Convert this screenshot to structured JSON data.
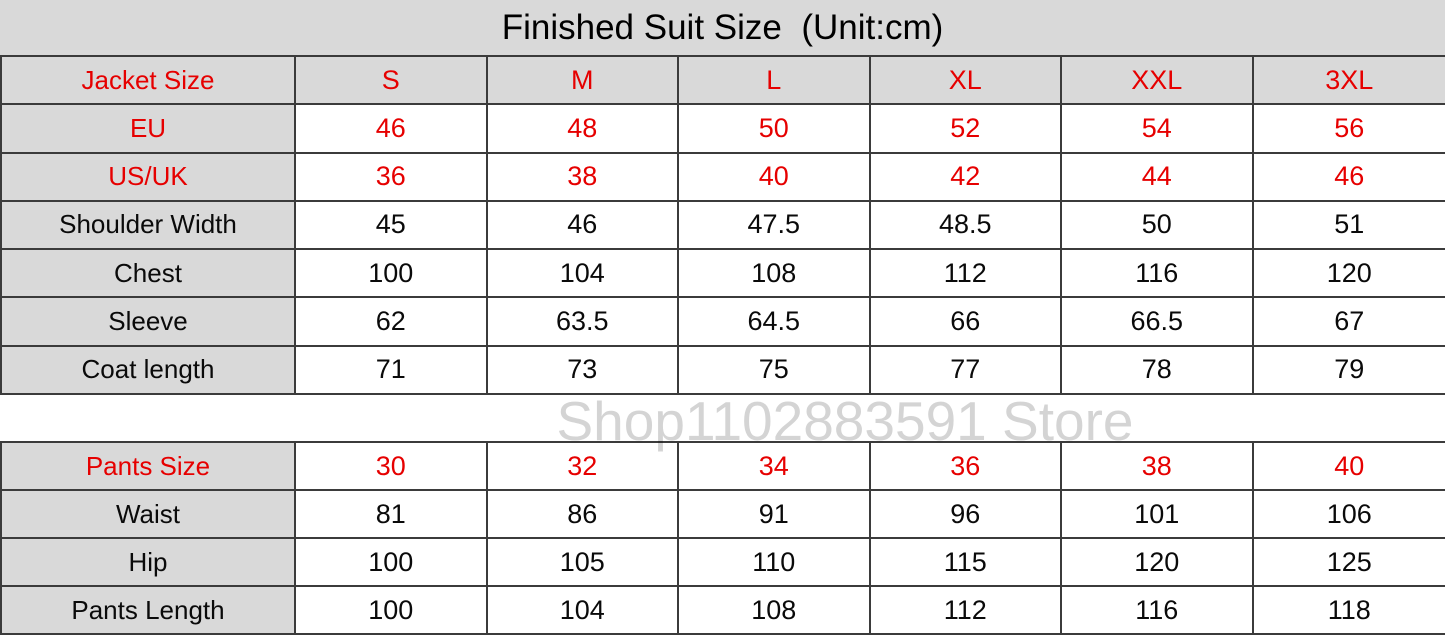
{
  "title": "Finished Suit Size  (Unit:cm)",
  "watermark": "Shop1102883591 Store",
  "colors": {
    "red_text": "#e60000",
    "grey_cell_background": "#d9d9d9",
    "grid_border": "#3b3b3b",
    "watermark_grey": "#d4d4d4"
  },
  "chart_data": [
    {
      "type": "table",
      "name": "jacket-sizes",
      "title": "Finished Suit Size (Unit:cm)",
      "columns": [
        "Jacket Size",
        "S",
        "M",
        "L",
        "XL",
        "XXL",
        "3XL"
      ],
      "rows": [
        [
          "EU",
          "46",
          "48",
          "50",
          "52",
          "54",
          "56"
        ],
        [
          "US/UK",
          "36",
          "38",
          "40",
          "42",
          "44",
          "46"
        ],
        [
          "Shoulder Width",
          "45",
          "46",
          "47.5",
          "48.5",
          "50",
          "51"
        ],
        [
          "Chest",
          "100",
          "104",
          "108",
          "112",
          "116",
          "120"
        ],
        [
          "Sleeve",
          "62",
          "63.5",
          "64.5",
          "66",
          "66.5",
          "67"
        ],
        [
          "Coat length",
          "71",
          "73",
          "75",
          "77",
          "78",
          "79"
        ]
      ],
      "red_text_rows": [
        0,
        1
      ],
      "header_data_cells_grey": true
    },
    {
      "type": "table",
      "name": "pants-sizes",
      "title": "",
      "columns": [
        "Pants Size",
        "30",
        "32",
        "34",
        "36",
        "38",
        "40"
      ],
      "rows": [
        [
          "Waist",
          "81",
          "86",
          "91",
          "96",
          "101",
          "106"
        ],
        [
          "Hip",
          "100",
          "105",
          "110",
          "115",
          "120",
          "125"
        ],
        [
          "Pants Length",
          "100",
          "104",
          "108",
          "112",
          "116",
          "118"
        ]
      ],
      "red_text_rows": [],
      "header_data_cells_grey": false
    }
  ]
}
